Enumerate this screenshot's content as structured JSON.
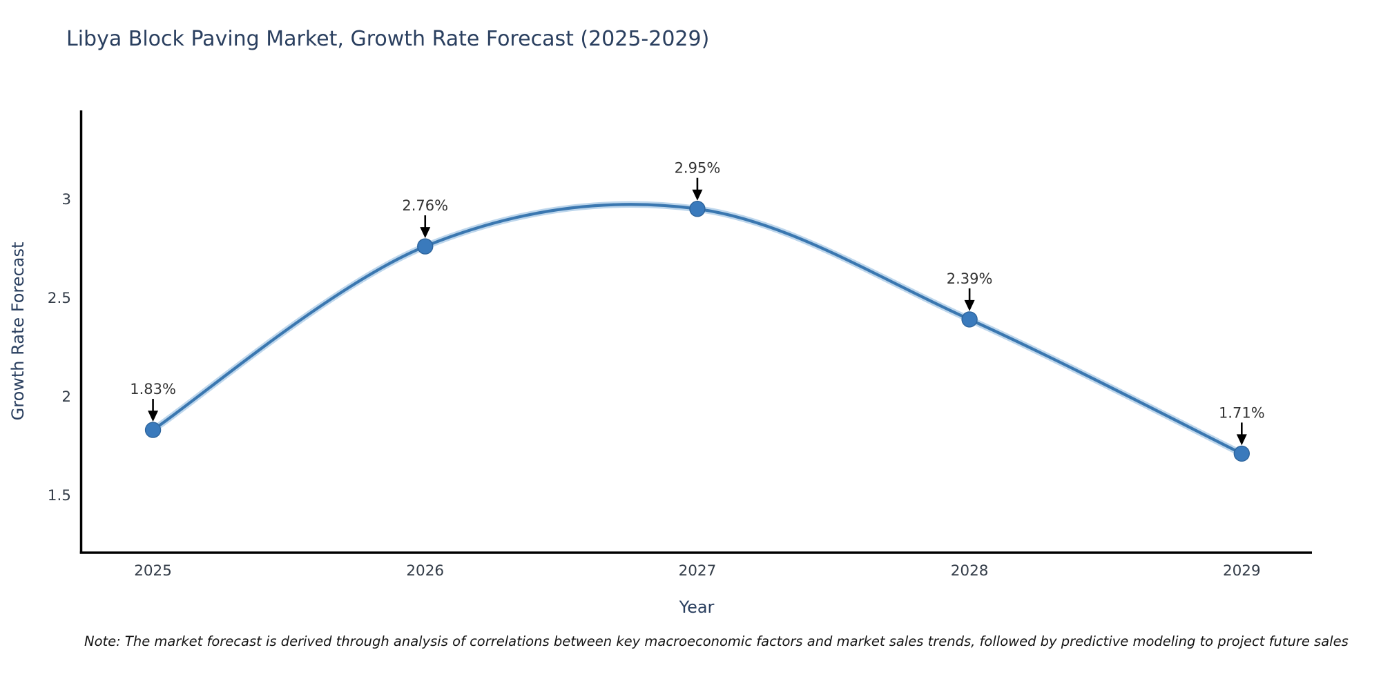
{
  "note": {
    "text": "Note: The market forecast is derived through analysis of correlations between key macroeconomic factors and market sales trends, followed by predictive modeling to project future sales"
  },
  "chart_data": {
    "type": "line",
    "title": "Libya Block Paving Market, Growth Rate Forecast (2025-2029)",
    "xlabel": "Year",
    "ylabel": "Growth Rate Forecast",
    "x": [
      2025,
      2026,
      2027,
      2028,
      2029
    ],
    "values": [
      1.83,
      2.76,
      2.95,
      2.39,
      1.71
    ],
    "point_labels": [
      "1.83%",
      "2.76%",
      "2.95%",
      "2.39%",
      "1.71%"
    ],
    "yticks": [
      1.5,
      2,
      2.5,
      3
    ],
    "ytick_labels": [
      "1.5",
      "2",
      "2.5",
      "3"
    ],
    "xtick_labels": [
      "2025",
      "2026",
      "2027",
      "2028",
      "2029"
    ],
    "ylim": [
      1.208,
      3.449
    ],
    "xlim": [
      2024.736,
      2029.258
    ],
    "grid": false,
    "legend": false,
    "curve": "spline",
    "annotations": "arrow-down-to-point",
    "colors": {
      "line": "#3a77b0",
      "line_halo": "#bdd6ec",
      "marker": "#3a7abc",
      "marker_edge": "#2d649c",
      "annotation_text": "#333333",
      "arrow": "#000000",
      "axis": "#000000",
      "tick_text": "#333c48",
      "title_text": "#2a3f5f",
      "note_text": "#141414",
      "background": "#ffffff"
    }
  }
}
